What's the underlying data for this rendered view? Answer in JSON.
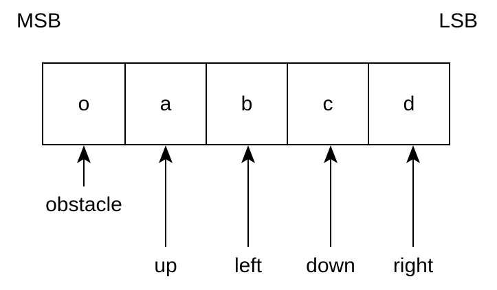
{
  "labels": {
    "msb": "MSB",
    "lsb": "LSB"
  },
  "bits": [
    {
      "symbol": "o",
      "meaning": "obstacle"
    },
    {
      "symbol": "a",
      "meaning": "up"
    },
    {
      "symbol": "b",
      "meaning": "left"
    },
    {
      "symbol": "c",
      "meaning": "down"
    },
    {
      "symbol": "d",
      "meaning": "right"
    }
  ],
  "colors": {
    "stroke": "#000000",
    "background": "#ffffff"
  }
}
